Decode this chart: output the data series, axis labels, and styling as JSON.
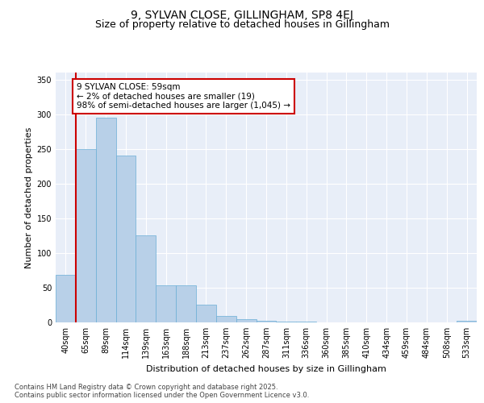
{
  "title1": "9, SYLVAN CLOSE, GILLINGHAM, SP8 4EJ",
  "title2": "Size of property relative to detached houses in Gillingham",
  "xlabel": "Distribution of detached houses by size in Gillingham",
  "ylabel": "Number of detached properties",
  "categories": [
    "40sqm",
    "65sqm",
    "89sqm",
    "114sqm",
    "139sqm",
    "163sqm",
    "188sqm",
    "213sqm",
    "237sqm",
    "262sqm",
    "287sqm",
    "311sqm",
    "336sqm",
    "360sqm",
    "385sqm",
    "410sqm",
    "434sqm",
    "459sqm",
    "484sqm",
    "508sqm",
    "533sqm"
  ],
  "values": [
    68,
    250,
    295,
    240,
    126,
    53,
    53,
    25,
    9,
    5,
    2,
    1,
    1,
    0,
    0,
    0,
    0,
    0,
    0,
    0,
    2
  ],
  "bar_color": "#b8d0e8",
  "bar_edge_color": "#6aaed6",
  "bg_color": "#e8eef8",
  "grid_color": "#ffffff",
  "annotation_text": "9 SYLVAN CLOSE: 59sqm\n← 2% of detached houses are smaller (19)\n98% of semi-detached houses are larger (1,045) →",
  "annotation_box_color": "#ffffff",
  "annotation_box_edge": "#cc0000",
  "vline_color": "#cc0000",
  "vline_x": 0.5,
  "ylim": [
    0,
    360
  ],
  "yticks": [
    0,
    50,
    100,
    150,
    200,
    250,
    300,
    350
  ],
  "footer": "Contains HM Land Registry data © Crown copyright and database right 2025.\nContains public sector information licensed under the Open Government Licence v3.0.",
  "title1_fontsize": 10,
  "title2_fontsize": 9,
  "axis_label_fontsize": 8,
  "tick_fontsize": 7,
  "footer_fontsize": 6
}
